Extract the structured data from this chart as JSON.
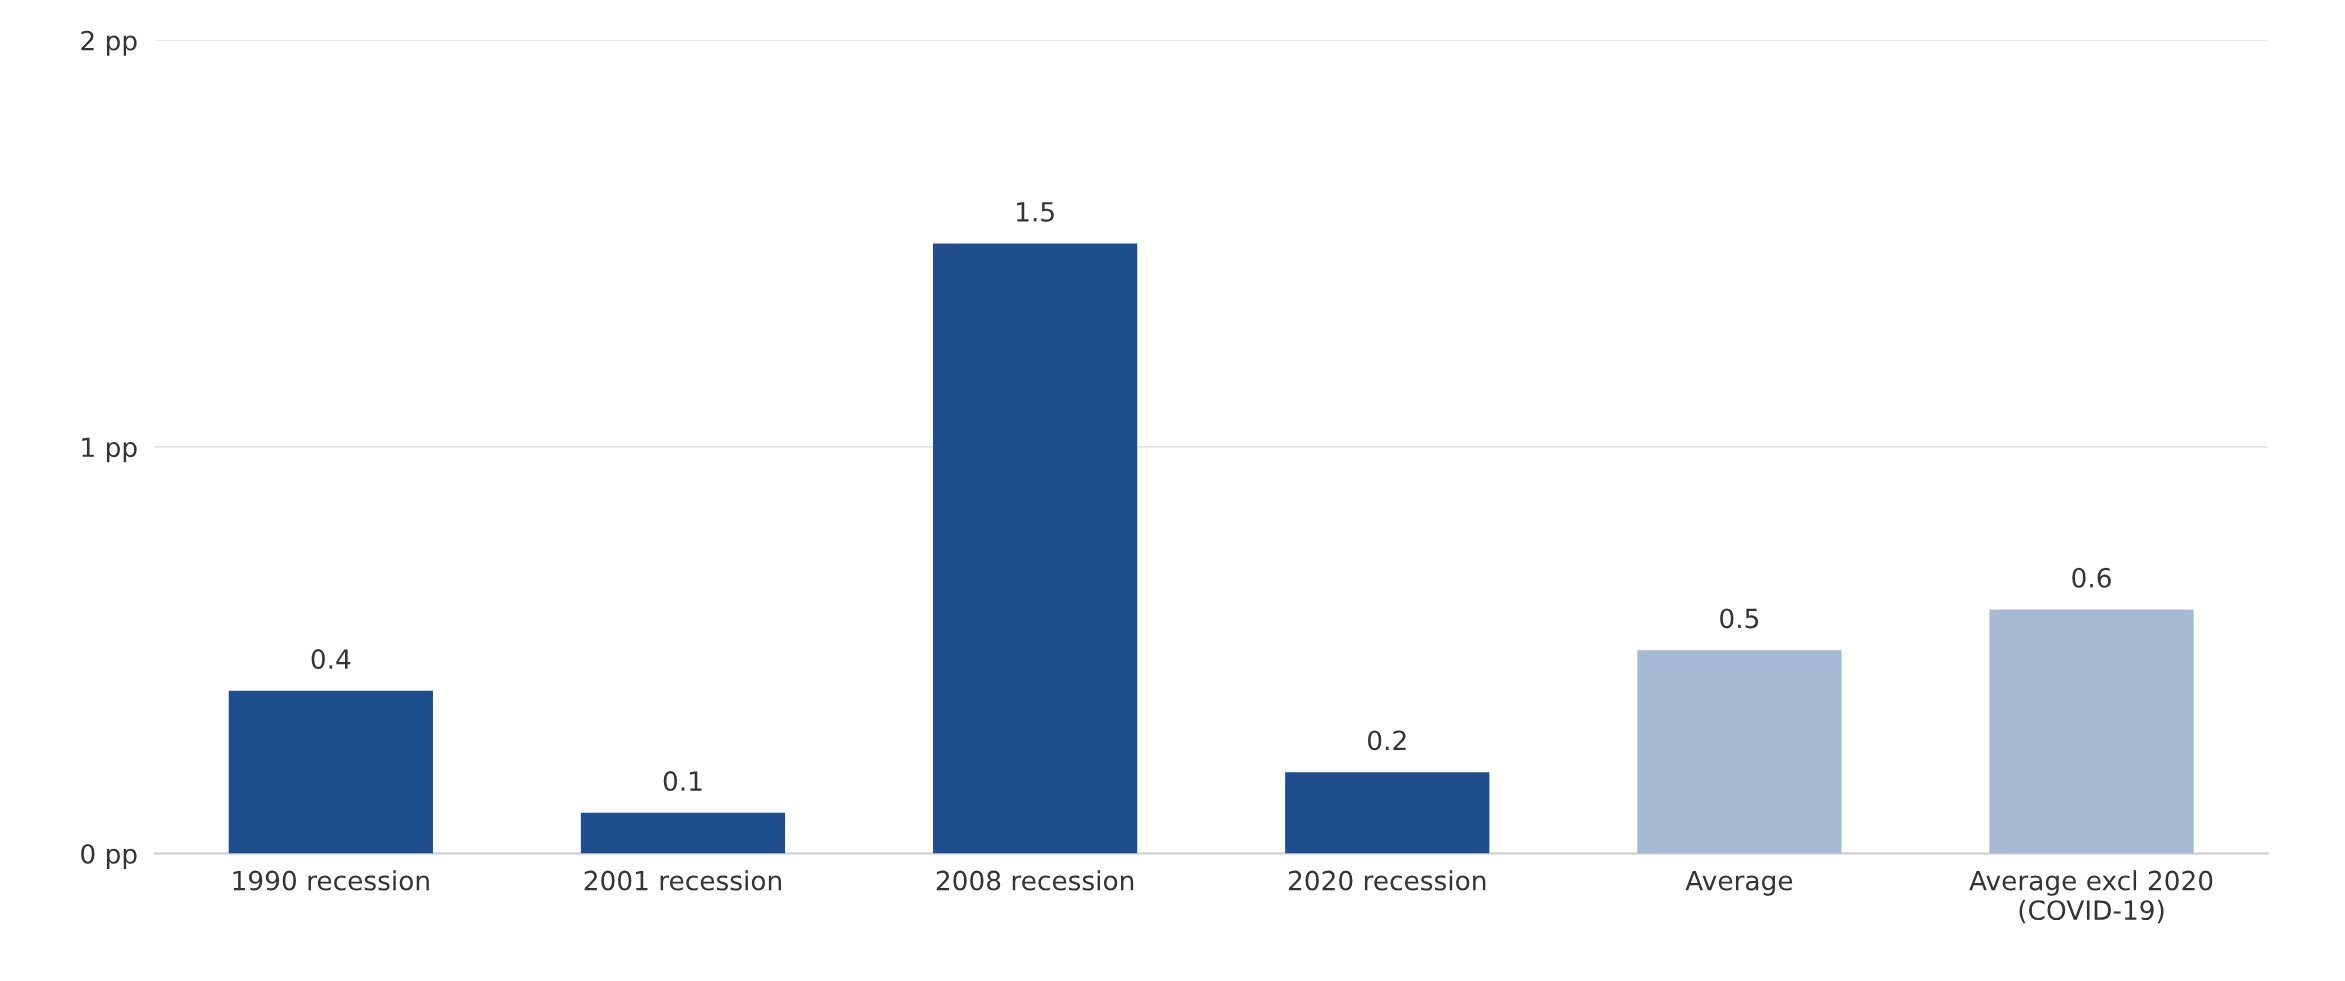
{
  "chart_data": {
    "type": "bar",
    "categories": [
      "1990 recession",
      "2001 recession",
      "2008 recession",
      "2020 recession",
      "Average",
      "Average excl 2020\n(COVID-19)"
    ],
    "values": [
      0.4,
      0.1,
      1.5,
      0.2,
      0.5,
      0.6
    ],
    "colors": [
      "#1f4e8f",
      "#1f4e8f",
      "#1f4e8f",
      "#1f4e8f",
      "#a6b9d3",
      "#a6b9d3"
    ],
    "ylim": [
      0,
      2
    ],
    "yticks": [
      {
        "value": 0,
        "label": "0 pp"
      },
      {
        "value": 1,
        "label": "1 pp"
      },
      {
        "value": 2,
        "label": "2 pp"
      }
    ],
    "grid": "y",
    "data_labels": true
  }
}
